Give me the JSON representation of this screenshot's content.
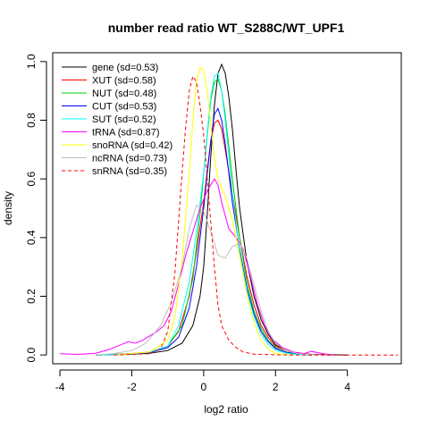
{
  "chart_data": {
    "type": "line",
    "title": "number read ratio WT_S288C/WT_UPF1",
    "xlabel": "log2 ratio",
    "ylabel": "density",
    "xlim": [
      -4.2,
      5.5
    ],
    "ylim": [
      -0.03,
      1.03
    ],
    "xticks": [
      -4,
      -2,
      0,
      2,
      4
    ],
    "yticks": [
      0.0,
      0.2,
      0.4,
      0.6,
      0.8,
      1.0
    ],
    "legend": {
      "position": "top-left",
      "entries": [
        "gene (sd=0.53)",
        "XUT (sd=0.58)",
        "NUT (sd=0.48)",
        "CUT (sd=0.53)",
        "SUT (sd=0.52)",
        "tRNA (sd=0.87)",
        "snoRNA (sd=0.42)",
        "ncRNA (sd=0.73)",
        "snRNA (sd=0.35)"
      ]
    },
    "series": [
      {
        "name": "gene (sd=0.53)",
        "color": "#000000",
        "dash": false,
        "x": [
          -3.0,
          -2.0,
          -1.5,
          -1.0,
          -0.6,
          -0.3,
          -0.1,
          0.0,
          0.1,
          0.2,
          0.3,
          0.4,
          0.5,
          0.6,
          0.7,
          0.8,
          0.9,
          1.0,
          1.2,
          1.4,
          1.6,
          1.8,
          2.0,
          2.3,
          2.6,
          3.0,
          3.5,
          4.0
        ],
        "y": [
          0.0,
          0.003,
          0.006,
          0.015,
          0.04,
          0.1,
          0.2,
          0.3,
          0.48,
          0.68,
          0.85,
          0.96,
          0.99,
          0.96,
          0.88,
          0.77,
          0.63,
          0.5,
          0.32,
          0.2,
          0.12,
          0.07,
          0.035,
          0.015,
          0.006,
          0.002,
          0.001,
          0.0
        ]
      },
      {
        "name": "XUT (sd=0.58)",
        "color": "#ff0000",
        "dash": false,
        "x": [
          -3.0,
          -2.0,
          -1.5,
          -1.0,
          -0.7,
          -0.4,
          -0.2,
          0.0,
          0.1,
          0.2,
          0.3,
          0.4,
          0.5,
          0.6,
          0.8,
          1.0,
          1.2,
          1.4,
          1.6,
          1.8,
          2.0,
          2.3,
          2.6,
          3.0,
          3.5
        ],
        "y": [
          0.0,
          0.005,
          0.01,
          0.03,
          0.08,
          0.2,
          0.35,
          0.52,
          0.63,
          0.73,
          0.79,
          0.8,
          0.77,
          0.7,
          0.55,
          0.4,
          0.27,
          0.17,
          0.1,
          0.06,
          0.03,
          0.015,
          0.006,
          0.002,
          0.0
        ]
      },
      {
        "name": "NUT (sd=0.48)",
        "color": "#00cc00",
        "dash": false,
        "x": [
          -3.0,
          -2.0,
          -1.5,
          -1.0,
          -0.6,
          -0.3,
          -0.1,
          0.1,
          0.2,
          0.3,
          0.4,
          0.5,
          0.6,
          0.7,
          0.8,
          1.0,
          1.2,
          1.4,
          1.6,
          1.8,
          2.0,
          2.3,
          2.6,
          3.0
        ],
        "y": [
          0.0,
          0.003,
          0.008,
          0.03,
          0.1,
          0.26,
          0.48,
          0.75,
          0.87,
          0.93,
          0.94,
          0.9,
          0.82,
          0.71,
          0.6,
          0.4,
          0.25,
          0.15,
          0.09,
          0.05,
          0.025,
          0.01,
          0.004,
          0.0
        ]
      },
      {
        "name": "CUT (sd=0.53)",
        "color": "#0000ff",
        "dash": false,
        "x": [
          -3.0,
          -2.0,
          -1.5,
          -1.0,
          -0.7,
          -0.4,
          -0.2,
          0.0,
          0.1,
          0.2,
          0.3,
          0.4,
          0.5,
          0.6,
          0.7,
          0.8,
          1.0,
          1.2,
          1.4,
          1.6,
          1.8,
          2.0,
          2.3,
          2.6,
          3.0
        ],
        "y": [
          0.0,
          0.003,
          0.008,
          0.025,
          0.06,
          0.16,
          0.3,
          0.5,
          0.62,
          0.73,
          0.82,
          0.84,
          0.8,
          0.72,
          0.62,
          0.52,
          0.36,
          0.23,
          0.14,
          0.08,
          0.045,
          0.022,
          0.009,
          0.003,
          0.0
        ]
      },
      {
        "name": "SUT (sd=0.52)",
        "color": "#00ffff",
        "dash": false,
        "x": [
          -3.0,
          -2.0,
          -1.5,
          -1.0,
          -0.7,
          -0.4,
          -0.2,
          0.0,
          0.1,
          0.2,
          0.3,
          0.4,
          0.5,
          0.6,
          0.7,
          0.8,
          1.0,
          1.2,
          1.4,
          1.6,
          1.8,
          2.0,
          2.3,
          2.6,
          3.0
        ],
        "y": [
          0.0,
          0.004,
          0.01,
          0.03,
          0.1,
          0.25,
          0.42,
          0.62,
          0.76,
          0.88,
          0.95,
          0.96,
          0.9,
          0.8,
          0.68,
          0.55,
          0.35,
          0.22,
          0.13,
          0.07,
          0.035,
          0.017,
          0.006,
          0.002,
          0.0
        ]
      },
      {
        "name": "tRNA (sd=0.87)",
        "color": "#ff00ff",
        "dash": false,
        "x": [
          -4.0,
          -3.5,
          -3.0,
          -2.6,
          -2.3,
          -2.1,
          -1.9,
          -1.7,
          -1.5,
          -1.3,
          -1.1,
          -0.9,
          -0.7,
          -0.5,
          -0.3,
          -0.1,
          0.1,
          0.3,
          0.4,
          0.5,
          0.7,
          0.9,
          1.1,
          1.3,
          1.5,
          1.7,
          1.9,
          2.2,
          2.5,
          2.8,
          3.0,
          3.3,
          3.6
        ],
        "y": [
          0.004,
          0.002,
          0.006,
          0.02,
          0.035,
          0.045,
          0.04,
          0.05,
          0.065,
          0.08,
          0.1,
          0.15,
          0.24,
          0.34,
          0.42,
          0.5,
          0.56,
          0.6,
          0.58,
          0.52,
          0.43,
          0.4,
          0.36,
          0.27,
          0.17,
          0.1,
          0.055,
          0.025,
          0.01,
          0.005,
          0.012,
          0.005,
          0.0
        ]
      },
      {
        "name": "snoRNA (sd=0.42)",
        "color": "#ffff00",
        "dash": false,
        "x": [
          -2.5,
          -1.5,
          -1.0,
          -0.8,
          -0.6,
          -0.4,
          -0.3,
          -0.2,
          -0.1,
          0.0,
          0.1,
          0.2,
          0.3,
          0.4,
          0.5,
          0.6,
          0.8,
          1.0,
          1.2,
          1.4,
          1.6,
          1.8,
          2.0,
          2.5
        ],
        "y": [
          0.0,
          0.01,
          0.05,
          0.13,
          0.32,
          0.62,
          0.8,
          0.93,
          0.98,
          0.97,
          0.9,
          0.78,
          0.67,
          0.6,
          0.57,
          0.54,
          0.46,
          0.34,
          0.21,
          0.11,
          0.05,
          0.02,
          0.005,
          0.0
        ]
      },
      {
        "name": "ncRNA (sd=0.73)",
        "color": "#bebebe",
        "dash": false,
        "x": [
          -3.0,
          -2.5,
          -2.0,
          -1.6,
          -1.2,
          -0.9,
          -0.6,
          -0.4,
          -0.2,
          0.0,
          0.2,
          0.4,
          0.6,
          0.8,
          1.0,
          1.2,
          1.4,
          1.6,
          1.8,
          2.0,
          2.3,
          2.6,
          3.0,
          3.5
        ],
        "y": [
          0.0,
          0.005,
          0.015,
          0.04,
          0.1,
          0.18,
          0.3,
          0.43,
          0.51,
          0.49,
          0.42,
          0.34,
          0.33,
          0.37,
          0.38,
          0.33,
          0.24,
          0.15,
          0.08,
          0.04,
          0.015,
          0.005,
          0.001,
          0.0
        ]
      },
      {
        "name": "snRNA (sd=0.35)",
        "color": "#ff0000",
        "dash": true,
        "x": [
          -2.5,
          -1.5,
          -1.2,
          -1.0,
          -0.8,
          -0.6,
          -0.5,
          -0.4,
          -0.3,
          -0.2,
          -0.1,
          0.0,
          0.1,
          0.2,
          0.3,
          0.4,
          0.5,
          0.7,
          0.9,
          1.1,
          1.4,
          1.8,
          2.5,
          3.5,
          5.4
        ],
        "y": [
          0.0,
          0.004,
          0.02,
          0.08,
          0.28,
          0.62,
          0.78,
          0.9,
          0.95,
          0.93,
          0.85,
          0.75,
          0.6,
          0.45,
          0.3,
          0.17,
          0.1,
          0.05,
          0.025,
          0.01,
          0.003,
          0.001,
          0.0,
          0.0,
          0.0
        ]
      }
    ]
  }
}
